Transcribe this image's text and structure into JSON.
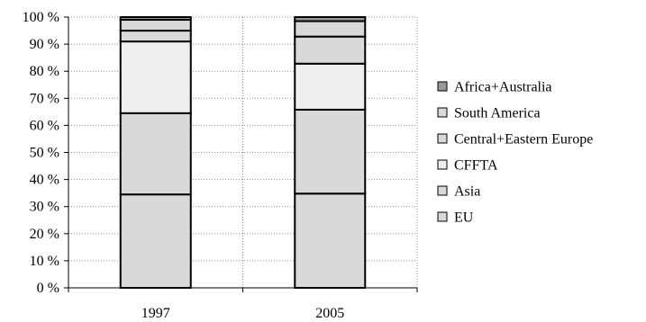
{
  "chart_data": {
    "type": "bar",
    "stacked": true,
    "percent": true,
    "categories": [
      "1997",
      "2005"
    ],
    "series": [
      {
        "name": "EU",
        "values": [
          34.5,
          34.8
        ],
        "color": "#d9d9d9"
      },
      {
        "name": "Asia",
        "values": [
          30.0,
          31.0
        ],
        "color": "#d9d9d9"
      },
      {
        "name": "CFFTA",
        "values": [
          26.5,
          17.0
        ],
        "color": "#eeeeee"
      },
      {
        "name": "Central+Eastern Europe",
        "values": [
          4.0,
          10.0
        ],
        "color": "#d9d9d9"
      },
      {
        "name": "South America",
        "values": [
          4.0,
          5.7
        ],
        "color": "#d9d9d9"
      },
      {
        "name": "Africa+Australia",
        "values": [
          1.0,
          1.5
        ],
        "color": "#999999"
      }
    ],
    "y_ticks": [
      "0 %",
      "10 %",
      "20 %",
      "30 %",
      "40 %",
      "50 %",
      "60 %",
      "70 %",
      "80 %",
      "90 %",
      "100 %"
    ],
    "ylim": [
      0,
      100
    ],
    "title": "",
    "xlabel": "",
    "ylabel": "",
    "grid": {
      "horizontal": true,
      "vertical": true,
      "style": "dotted"
    },
    "legend_position": "right",
    "legend_order": [
      "Africa+Australia",
      "South America",
      "Central+Eastern Europe",
      "CFFTA",
      "Asia",
      "EU"
    ]
  }
}
